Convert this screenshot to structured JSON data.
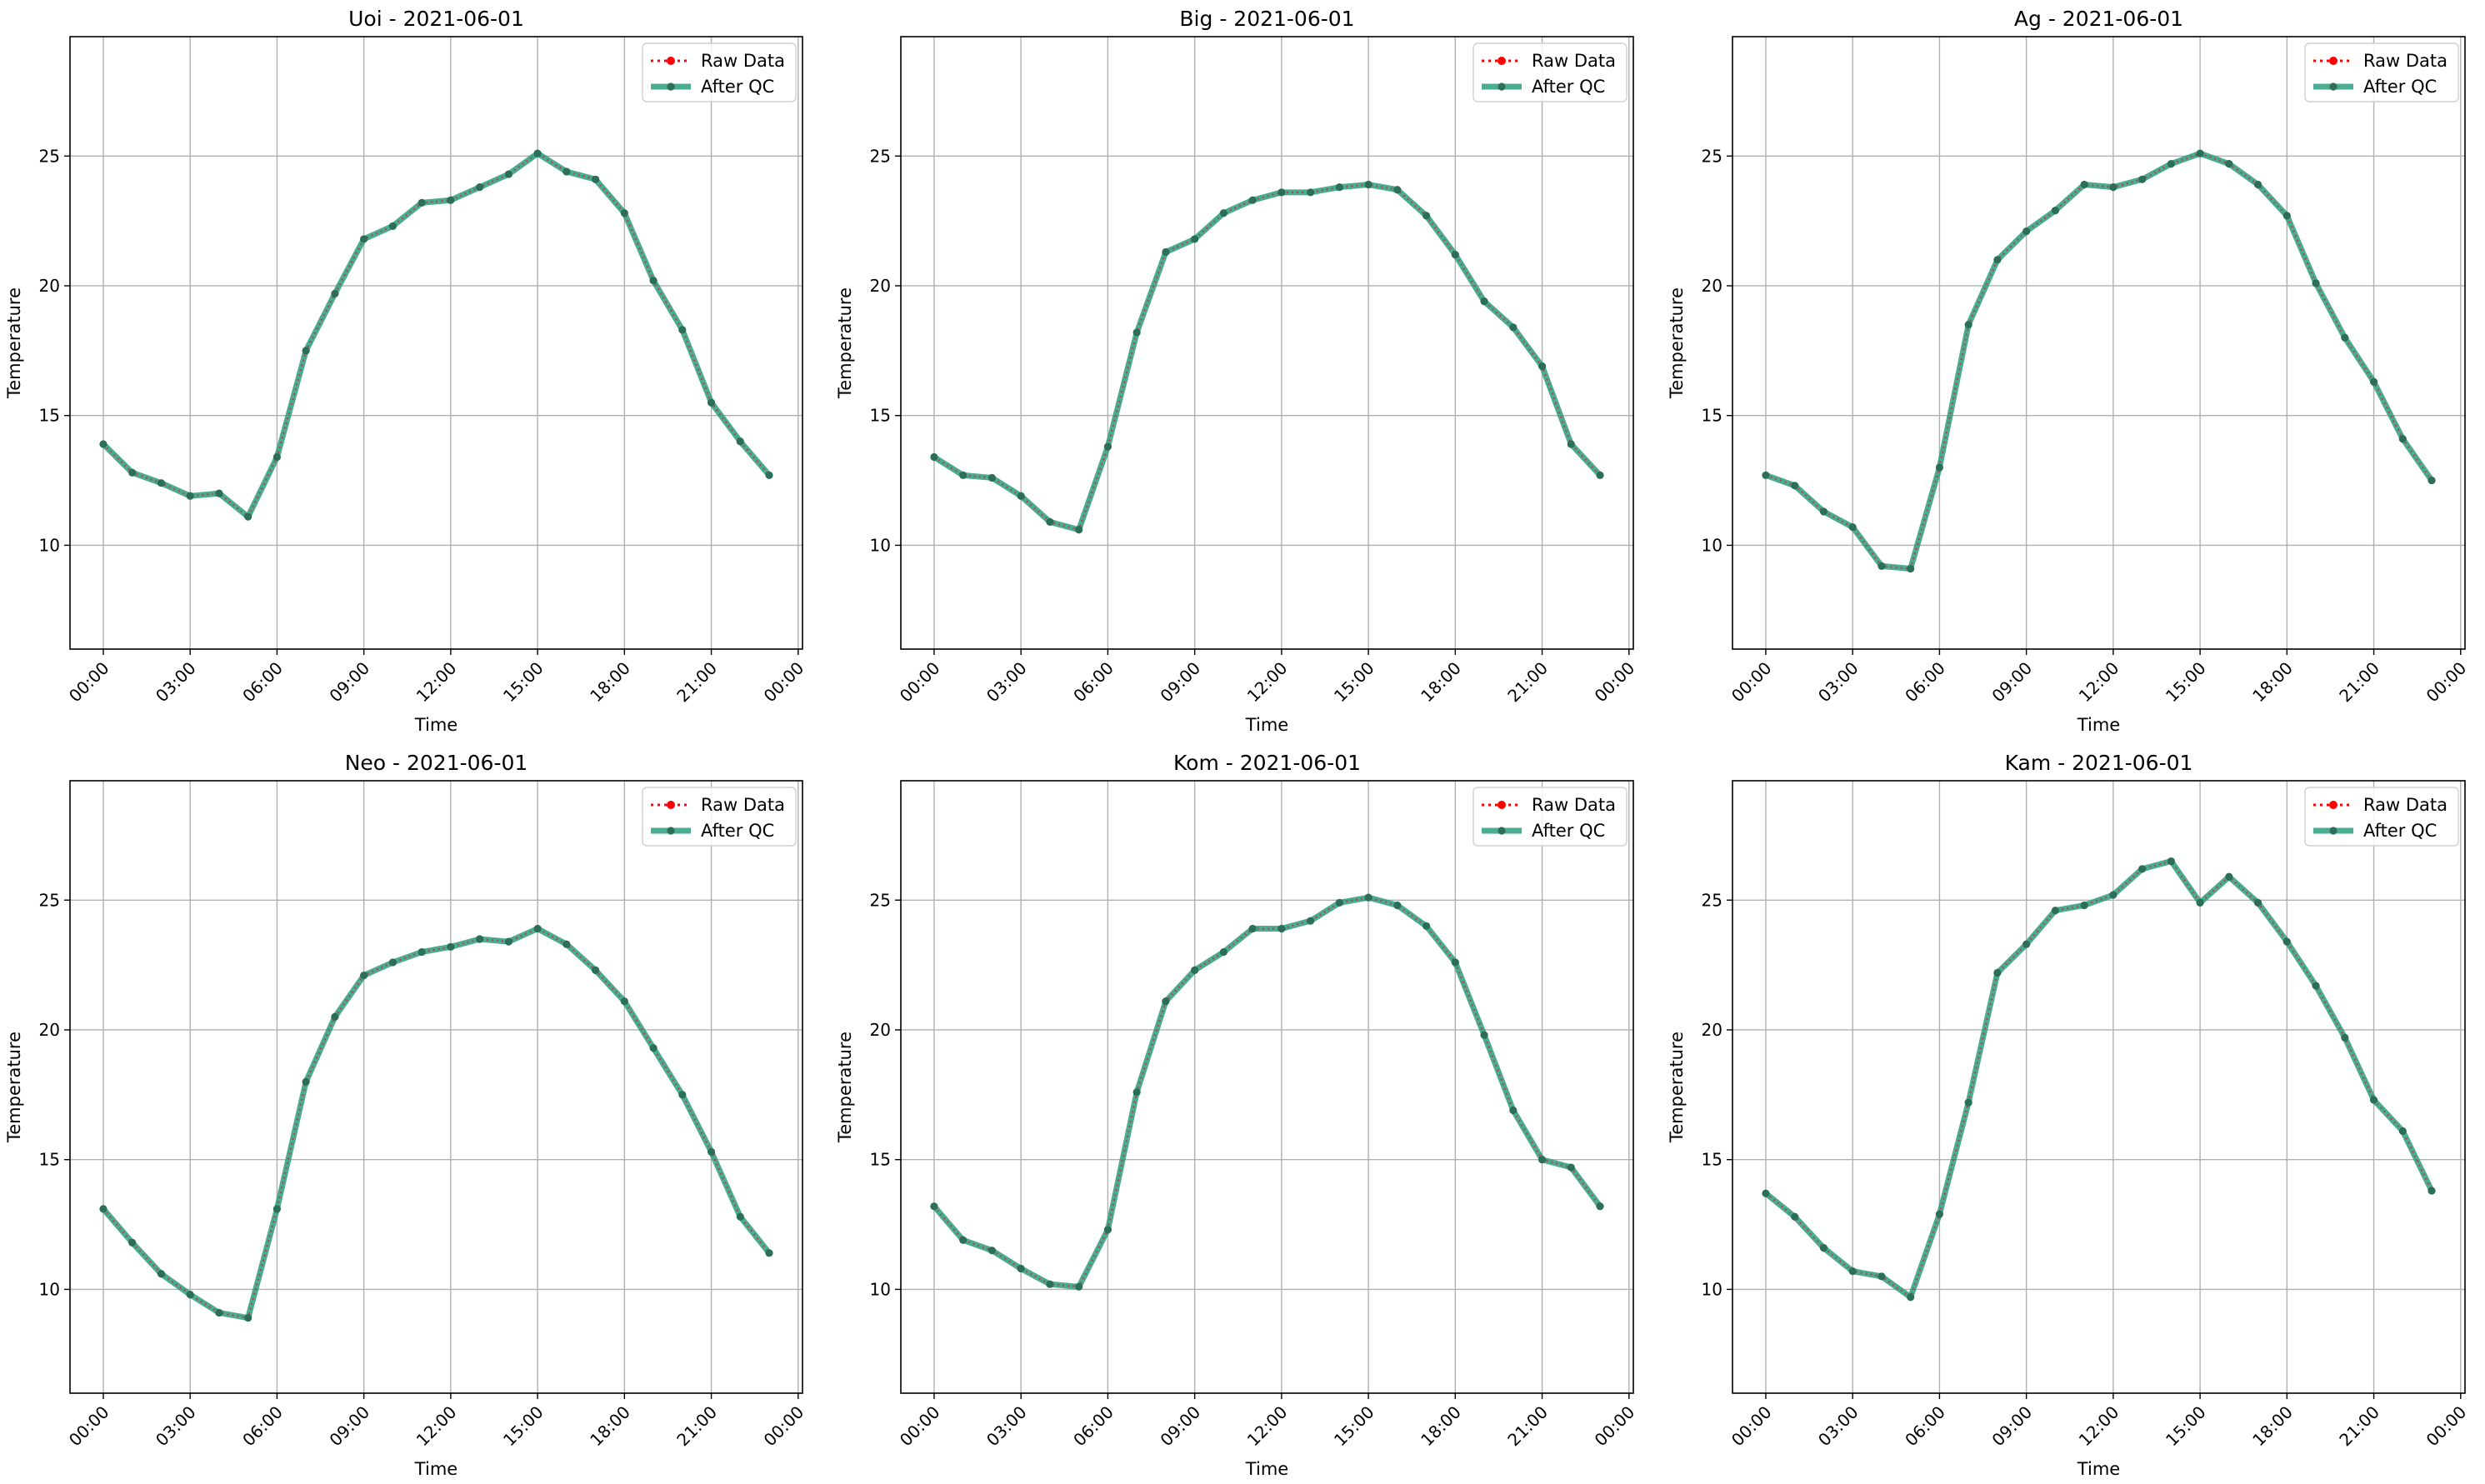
{
  "colors": {
    "raw": "#ff0000",
    "qc": "#2a9d7f",
    "grid": "#b0b0b0",
    "axis": "#000000"
  },
  "chart_data": [
    {
      "type": "line",
      "title": "Uoi - 2021-06-01",
      "xlabel": "Time",
      "ylabel": "Temperature",
      "x": [
        "00:00",
        "01:00",
        "02:00",
        "03:00",
        "04:00",
        "05:00",
        "06:00",
        "07:00",
        "08:00",
        "09:00",
        "10:00",
        "11:00",
        "12:00",
        "13:00",
        "14:00",
        "15:00",
        "16:00",
        "17:00",
        "18:00",
        "19:00",
        "20:00",
        "21:00",
        "22:00",
        "23:00"
      ],
      "xticks": [
        "00:00",
        "03:00",
        "06:00",
        "09:00",
        "12:00",
        "15:00",
        "18:00",
        "21:00",
        "00:00"
      ],
      "yticks": [
        10,
        15,
        20,
        25
      ],
      "ylim": [
        6.0,
        29.6
      ],
      "grid": true,
      "legend_position": "top-right",
      "series": [
        {
          "name": "Raw Data",
          "style": "dotted",
          "values": [
            13.9,
            12.8,
            12.4,
            11.9,
            12.0,
            11.1,
            13.4,
            17.5,
            19.7,
            21.8,
            22.3,
            23.2,
            23.3,
            23.8,
            24.3,
            25.1,
            24.4,
            24.1,
            22.8,
            20.2,
            18.3,
            15.5,
            14.0,
            12.7
          ]
        },
        {
          "name": "After QC",
          "style": "solid",
          "values": [
            13.9,
            12.8,
            12.4,
            11.9,
            12.0,
            11.1,
            13.4,
            17.5,
            19.7,
            21.8,
            22.3,
            23.2,
            23.3,
            23.8,
            24.3,
            25.1,
            24.4,
            24.1,
            22.8,
            20.2,
            18.3,
            15.5,
            14.0,
            12.7
          ]
        }
      ]
    },
    {
      "type": "line",
      "title": "Big - 2021-06-01",
      "xlabel": "Time",
      "ylabel": "Temperature",
      "x": [
        "00:00",
        "01:00",
        "02:00",
        "03:00",
        "04:00",
        "05:00",
        "06:00",
        "07:00",
        "08:00",
        "09:00",
        "10:00",
        "11:00",
        "12:00",
        "13:00",
        "14:00",
        "15:00",
        "16:00",
        "17:00",
        "18:00",
        "19:00",
        "20:00",
        "21:00",
        "22:00",
        "23:00"
      ],
      "xticks": [
        "00:00",
        "03:00",
        "06:00",
        "09:00",
        "12:00",
        "15:00",
        "18:00",
        "21:00",
        "00:00"
      ],
      "yticks": [
        10,
        15,
        20,
        25
      ],
      "ylim": [
        6.0,
        29.6
      ],
      "grid": true,
      "legend_position": "top-right",
      "series": [
        {
          "name": "Raw Data",
          "style": "dotted",
          "values": [
            13.4,
            12.7,
            12.6,
            11.9,
            10.9,
            10.6,
            13.8,
            18.2,
            21.3,
            21.8,
            22.8,
            23.3,
            23.6,
            23.6,
            23.8,
            23.9,
            23.7,
            22.7,
            21.2,
            19.4,
            18.4,
            16.9,
            13.9,
            12.7
          ]
        },
        {
          "name": "After QC",
          "style": "solid",
          "values": [
            13.4,
            12.7,
            12.6,
            11.9,
            10.9,
            10.6,
            13.8,
            18.2,
            21.3,
            21.8,
            22.8,
            23.3,
            23.6,
            23.6,
            23.8,
            23.9,
            23.7,
            22.7,
            21.2,
            19.4,
            18.4,
            16.9,
            13.9,
            12.7
          ]
        }
      ]
    },
    {
      "type": "line",
      "title": "Ag - 2021-06-01",
      "xlabel": "Time",
      "ylabel": "Temperature",
      "x": [
        "00:00",
        "01:00",
        "02:00",
        "03:00",
        "04:00",
        "05:00",
        "06:00",
        "07:00",
        "08:00",
        "09:00",
        "10:00",
        "11:00",
        "12:00",
        "13:00",
        "14:00",
        "15:00",
        "16:00",
        "17:00",
        "18:00",
        "19:00",
        "20:00",
        "21:00",
        "22:00",
        "23:00"
      ],
      "xticks": [
        "00:00",
        "03:00",
        "06:00",
        "09:00",
        "12:00",
        "15:00",
        "18:00",
        "21:00",
        "00:00"
      ],
      "yticks": [
        10,
        15,
        20,
        25
      ],
      "ylim": [
        6.0,
        29.6
      ],
      "grid": true,
      "legend_position": "top-right",
      "series": [
        {
          "name": "Raw Data",
          "style": "dotted",
          "values": [
            12.7,
            12.3,
            11.3,
            10.7,
            9.2,
            9.1,
            13.0,
            18.5,
            21.0,
            22.1,
            22.9,
            23.9,
            23.8,
            24.1,
            24.7,
            25.1,
            24.7,
            23.9,
            22.7,
            20.1,
            18.0,
            16.3,
            14.1,
            12.5
          ]
        },
        {
          "name": "After QC",
          "style": "solid",
          "values": [
            12.7,
            12.3,
            11.3,
            10.7,
            9.2,
            9.1,
            13.0,
            18.5,
            21.0,
            22.1,
            22.9,
            23.9,
            23.8,
            24.1,
            24.7,
            25.1,
            24.7,
            23.9,
            22.7,
            20.1,
            18.0,
            16.3,
            14.1,
            12.5
          ]
        }
      ]
    },
    {
      "type": "line",
      "title": "Neo - 2021-06-01",
      "xlabel": "Time",
      "ylabel": "Temperature",
      "x": [
        "00:00",
        "01:00",
        "02:00",
        "03:00",
        "04:00",
        "05:00",
        "06:00",
        "07:00",
        "08:00",
        "09:00",
        "10:00",
        "11:00",
        "12:00",
        "13:00",
        "14:00",
        "15:00",
        "16:00",
        "17:00",
        "18:00",
        "19:00",
        "20:00",
        "21:00",
        "22:00",
        "23:00"
      ],
      "xticks": [
        "00:00",
        "03:00",
        "06:00",
        "09:00",
        "12:00",
        "15:00",
        "18:00",
        "21:00",
        "00:00"
      ],
      "yticks": [
        10,
        15,
        20,
        25
      ],
      "ylim": [
        6.0,
        29.6
      ],
      "grid": true,
      "legend_position": "top-right",
      "series": [
        {
          "name": "Raw Data",
          "style": "dotted",
          "values": [
            13.1,
            11.8,
            10.6,
            9.8,
            9.1,
            8.9,
            13.1,
            18.0,
            20.5,
            22.1,
            22.6,
            23.0,
            23.2,
            23.5,
            23.4,
            23.9,
            23.3,
            22.3,
            21.1,
            19.3,
            17.5,
            15.3,
            12.8,
            11.4
          ]
        },
        {
          "name": "After QC",
          "style": "solid",
          "values": [
            13.1,
            11.8,
            10.6,
            9.8,
            9.1,
            8.9,
            13.1,
            18.0,
            20.5,
            22.1,
            22.6,
            23.0,
            23.2,
            23.5,
            23.4,
            23.9,
            23.3,
            22.3,
            21.1,
            19.3,
            17.5,
            15.3,
            12.8,
            11.4
          ]
        }
      ]
    },
    {
      "type": "line",
      "title": "Kom - 2021-06-01",
      "xlabel": "Time",
      "ylabel": "Temperature",
      "x": [
        "00:00",
        "01:00",
        "02:00",
        "03:00",
        "04:00",
        "05:00",
        "06:00",
        "07:00",
        "08:00",
        "09:00",
        "10:00",
        "11:00",
        "12:00",
        "13:00",
        "14:00",
        "15:00",
        "16:00",
        "17:00",
        "18:00",
        "19:00",
        "20:00",
        "21:00",
        "22:00",
        "23:00"
      ],
      "xticks": [
        "00:00",
        "03:00",
        "06:00",
        "09:00",
        "12:00",
        "15:00",
        "18:00",
        "21:00",
        "00:00"
      ],
      "yticks": [
        10,
        15,
        20,
        25
      ],
      "ylim": [
        6.0,
        29.6
      ],
      "grid": true,
      "legend_position": "top-right",
      "series": [
        {
          "name": "Raw Data",
          "style": "dotted",
          "values": [
            13.2,
            11.9,
            11.5,
            10.8,
            10.2,
            10.1,
            12.3,
            17.6,
            21.1,
            22.3,
            23.0,
            23.9,
            23.9,
            24.2,
            24.9,
            25.1,
            24.8,
            24.0,
            22.6,
            19.8,
            16.9,
            15.0,
            14.7,
            13.2
          ]
        },
        {
          "name": "After QC",
          "style": "solid",
          "values": [
            13.2,
            11.9,
            11.5,
            10.8,
            10.2,
            10.1,
            12.3,
            17.6,
            21.1,
            22.3,
            23.0,
            23.9,
            23.9,
            24.2,
            24.9,
            25.1,
            24.8,
            24.0,
            22.6,
            19.8,
            16.9,
            15.0,
            14.7,
            13.2
          ]
        }
      ]
    },
    {
      "type": "line",
      "title": "Kam - 2021-06-01",
      "xlabel": "Time",
      "ylabel": "Temperature",
      "x": [
        "00:00",
        "01:00",
        "02:00",
        "03:00",
        "04:00",
        "05:00",
        "06:00",
        "07:00",
        "08:00",
        "09:00",
        "10:00",
        "11:00",
        "12:00",
        "13:00",
        "14:00",
        "15:00",
        "16:00",
        "17:00",
        "18:00",
        "19:00",
        "20:00",
        "21:00",
        "22:00",
        "23:00"
      ],
      "xticks": [
        "00:00",
        "03:00",
        "06:00",
        "09:00",
        "12:00",
        "15:00",
        "18:00",
        "21:00",
        "00:00"
      ],
      "yticks": [
        10,
        15,
        20,
        25
      ],
      "ylim": [
        6.0,
        29.6
      ],
      "grid": true,
      "legend_position": "top-right",
      "series": [
        {
          "name": "Raw Data",
          "style": "dotted",
          "values": [
            13.7,
            12.8,
            11.6,
            10.7,
            10.5,
            9.7,
            12.9,
            17.2,
            22.2,
            23.3,
            24.6,
            24.8,
            25.2,
            26.2,
            26.5,
            24.9,
            25.9,
            24.9,
            23.4,
            21.7,
            19.7,
            17.3,
            16.1,
            13.8
          ]
        },
        {
          "name": "After QC",
          "style": "solid",
          "values": [
            13.7,
            12.8,
            11.6,
            10.7,
            10.5,
            9.7,
            12.9,
            17.2,
            22.2,
            23.3,
            24.6,
            24.8,
            25.2,
            26.2,
            26.5,
            24.9,
            25.9,
            24.9,
            23.4,
            21.7,
            19.7,
            17.3,
            16.1,
            13.8
          ]
        }
      ]
    }
  ]
}
